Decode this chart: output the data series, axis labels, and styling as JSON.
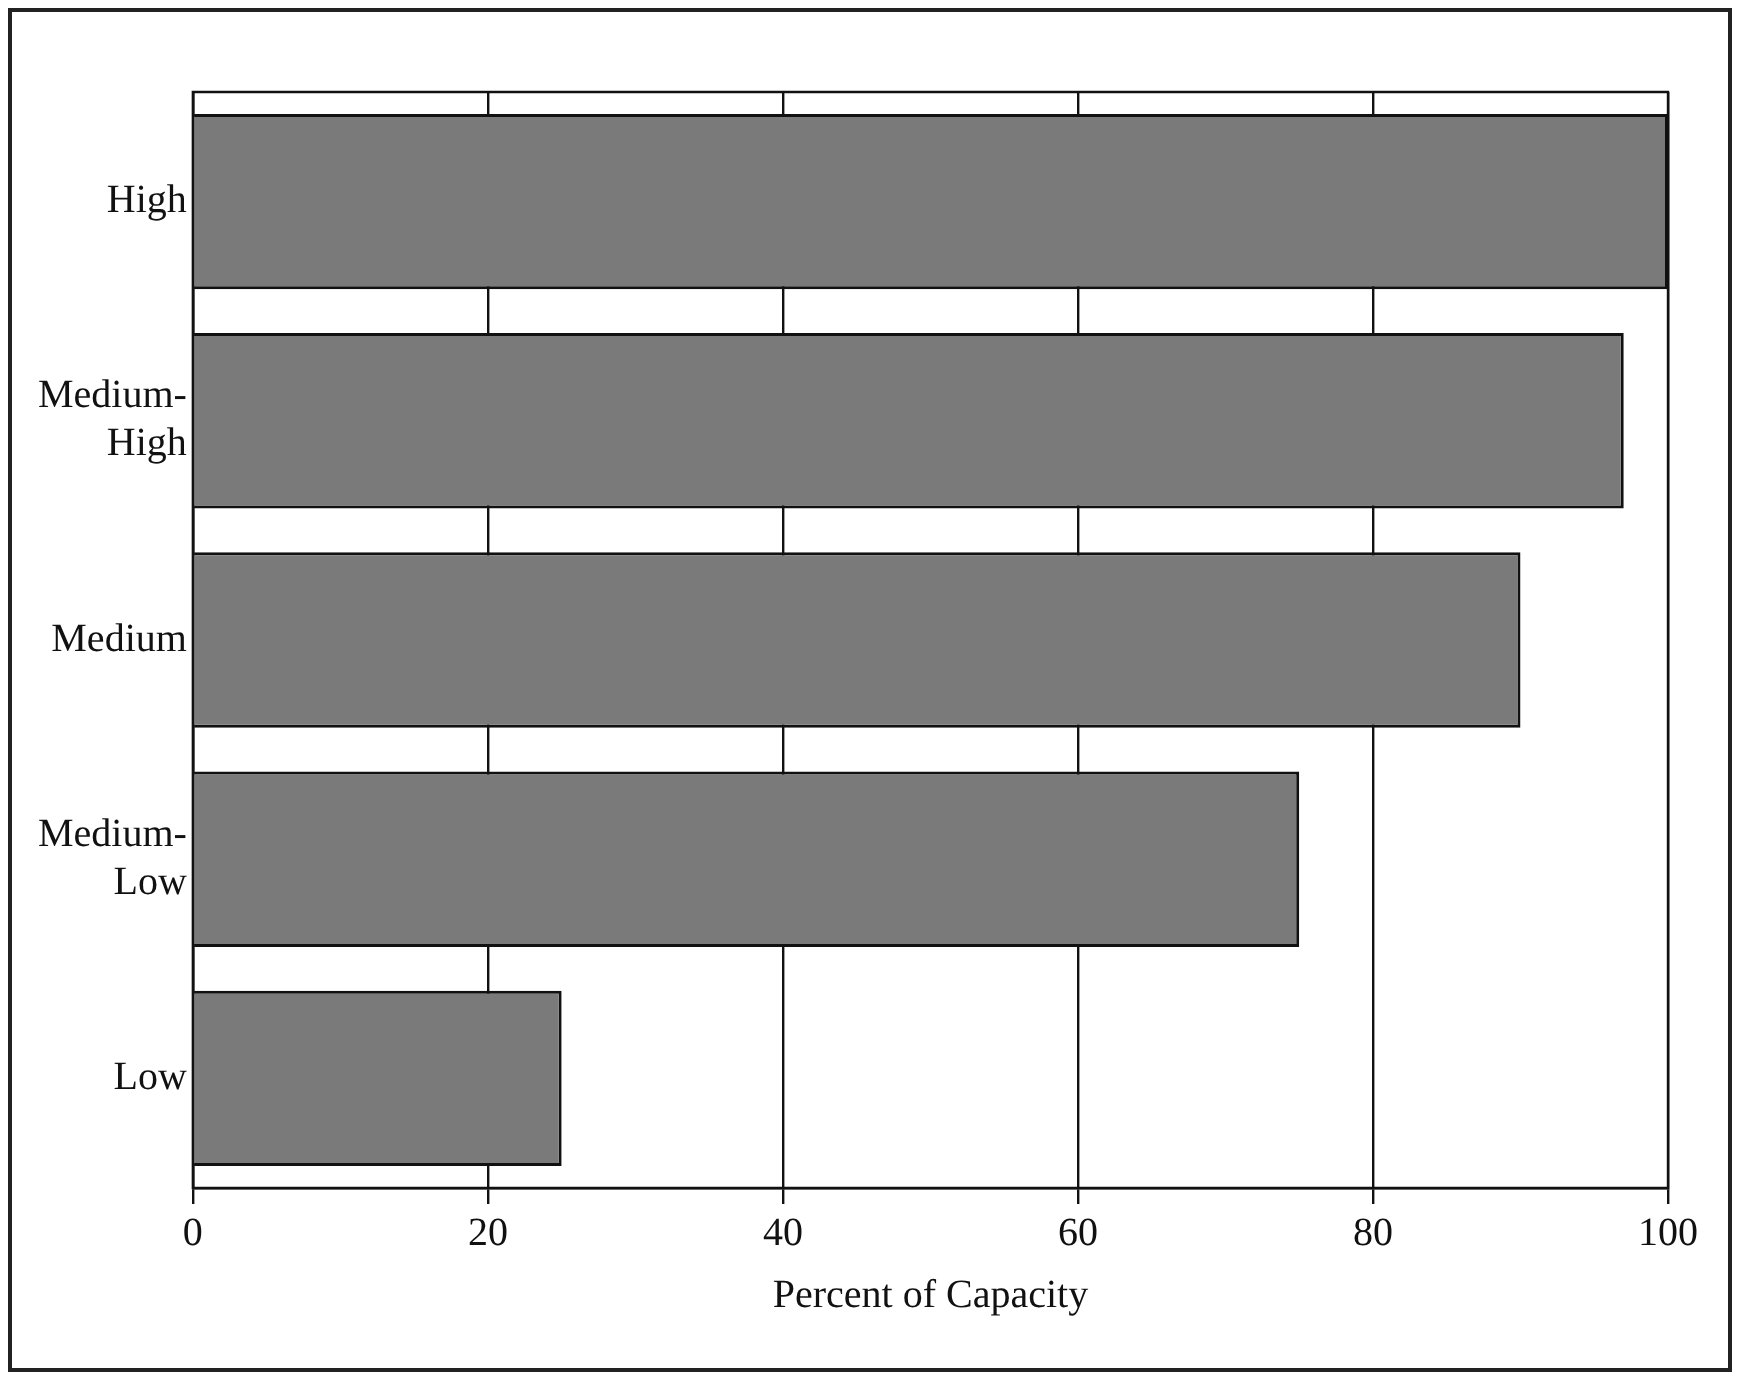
{
  "chart_data": {
    "type": "bar",
    "orientation": "horizontal",
    "xlabel": "Percent of Capacity",
    "categories": [
      "High",
      "Medium-\nHigh",
      "Medium",
      "Medium-\nLow",
      "Low"
    ],
    "values": [
      100,
      97,
      90,
      75,
      25
    ],
    "color": "#7a7a7a",
    "xlim": [
      0,
      100
    ],
    "xticks": [
      0,
      20,
      40,
      60,
      80,
      100
    ],
    "grid": "x",
    "legend": false
  }
}
